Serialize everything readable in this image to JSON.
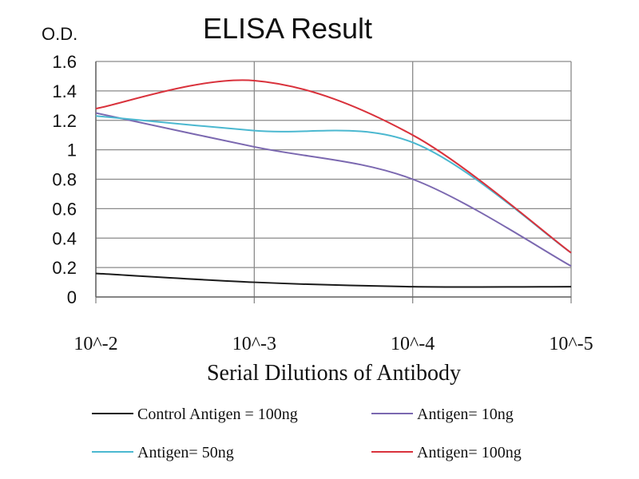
{
  "chart_data": {
    "type": "line",
    "title": "ELISA Result",
    "ylabel": "O.D.",
    "xlabel": "Serial Dilutions of Antibody",
    "categories": [
      "10^-2",
      "10^-3",
      "10^-4",
      "10^-5"
    ],
    "ylim": [
      0,
      1.6
    ],
    "yticks": [
      "0",
      "0.2",
      "0.4",
      "0.6",
      "0.8",
      "1",
      "1.2",
      "1.4",
      "1.6"
    ],
    "grid": true,
    "legend_position": "bottom",
    "series": [
      {
        "name": "Control Antigen = 100ng",
        "color": "#1a1a1a",
        "values": [
          0.16,
          0.1,
          0.07,
          0.07
        ]
      },
      {
        "name": "Antigen= 10ng",
        "color": "#7b68b0",
        "values": [
          1.25,
          1.02,
          0.8,
          0.21
        ]
      },
      {
        "name": "Antigen= 50ng",
        "color": "#4bb8d0",
        "values": [
          1.23,
          1.13,
          1.05,
          0.3
        ]
      },
      {
        "name": "Antigen= 100ng",
        "color": "#d9323c",
        "values": [
          1.28,
          1.47,
          1.1,
          0.3
        ]
      }
    ]
  }
}
